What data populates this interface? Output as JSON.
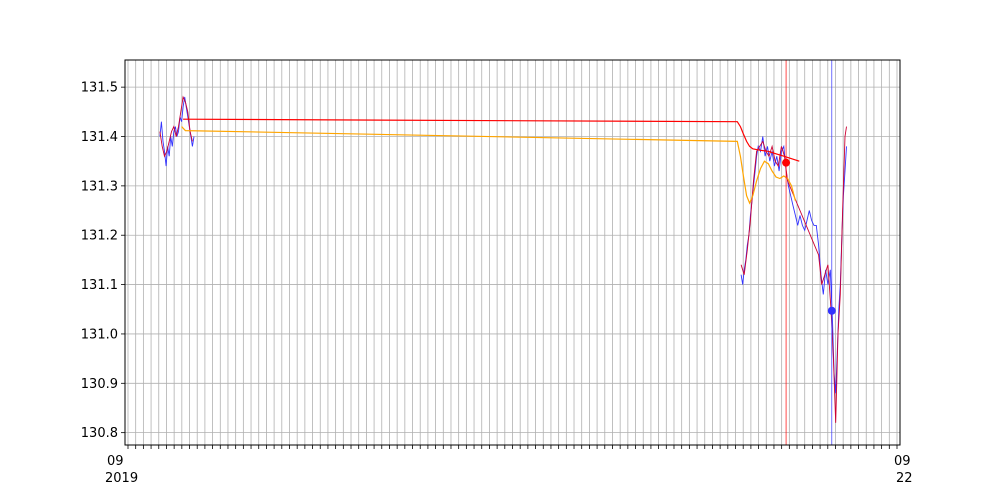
{
  "chart_data": {
    "type": "line",
    "title": "",
    "xlabel": "",
    "ylabel": "",
    "grid": true,
    "ylim": [
      130.775,
      131.555
    ],
    "yticks": [
      130.8,
      130.9,
      131.0,
      131.1,
      131.2,
      131.3,
      131.4,
      131.5
    ],
    "ytick_labels": [
      "130.8",
      "130.9",
      "131.0",
      "131.1",
      "131.2",
      "131.3",
      "131.4",
      "131.5"
    ],
    "xlim": [
      0,
      100
    ],
    "x_tick_count": 100,
    "x_tick_labels_edge": {
      "first_top": "09",
      "last_top": "09",
      "first_bottom": "2019",
      "last_bottom": "22"
    },
    "series": [
      {
        "role": "price",
        "color": "#3333ff",
        "points": [
          [
            4.5,
            131.4
          ],
          [
            4.7,
            131.43
          ],
          [
            4.9,
            131.39
          ],
          [
            5.1,
            131.37
          ],
          [
            5.3,
            131.34
          ],
          [
            5.5,
            131.38
          ],
          [
            5.7,
            131.36
          ],
          [
            5.9,
            131.4
          ],
          [
            6.1,
            131.38
          ],
          [
            6.3,
            131.41
          ],
          [
            6.5,
            131.42
          ],
          [
            6.7,
            131.4
          ],
          [
            6.9,
            131.41
          ],
          [
            7.1,
            131.44
          ],
          [
            7.3,
            131.43
          ],
          [
            7.5,
            131.46
          ],
          [
            7.7,
            131.48
          ],
          [
            7.9,
            131.46
          ],
          [
            8.1,
            131.44
          ],
          [
            8.3,
            131.42
          ],
          [
            8.5,
            131.4
          ],
          [
            8.7,
            131.38
          ],
          [
            8.9,
            131.4
          ],
          [
            79.5,
            131.12
          ],
          [
            79.7,
            131.1
          ],
          [
            79.9,
            131.13
          ],
          [
            80.1,
            131.15
          ],
          [
            80.3,
            131.18
          ],
          [
            80.5,
            131.2
          ],
          [
            80.7,
            131.24
          ],
          [
            80.9,
            131.27
          ],
          [
            81.1,
            131.3
          ],
          [
            81.3,
            131.33
          ],
          [
            81.5,
            131.36
          ],
          [
            81.7,
            131.38
          ],
          [
            82.0,
            131.37
          ],
          [
            82.3,
            131.4
          ],
          [
            82.6,
            131.36
          ],
          [
            82.9,
            131.38
          ],
          [
            83.2,
            131.35
          ],
          [
            83.5,
            131.37
          ],
          [
            83.8,
            131.34
          ],
          [
            84.1,
            131.36
          ],
          [
            84.4,
            131.33
          ],
          [
            84.7,
            131.37
          ],
          [
            85.0,
            131.38
          ],
          [
            85.3,
            131.33
          ],
          [
            85.6,
            131.3
          ],
          [
            85.9,
            131.28
          ],
          [
            86.2,
            131.26
          ],
          [
            86.5,
            131.24
          ],
          [
            86.8,
            131.22
          ],
          [
            87.1,
            131.24
          ],
          [
            87.4,
            131.22
          ],
          [
            87.7,
            131.21
          ],
          [
            88.0,
            131.23
          ],
          [
            88.3,
            131.25
          ],
          [
            88.6,
            131.23
          ],
          [
            88.9,
            131.22
          ],
          [
            89.2,
            131.22
          ],
          [
            89.5,
            131.18
          ],
          [
            89.8,
            131.12
          ],
          [
            90.1,
            131.08
          ],
          [
            90.4,
            131.13
          ],
          [
            90.7,
            131.1
          ],
          [
            91.0,
            131.13
          ],
          [
            91.3,
            131.02
          ],
          [
            91.5,
            130.92
          ],
          [
            91.7,
            130.88
          ],
          [
            91.9,
            130.96
          ],
          [
            92.1,
            131.05
          ],
          [
            92.3,
            131.1
          ],
          [
            92.5,
            131.2
          ],
          [
            92.7,
            131.28
          ],
          [
            92.9,
            131.33
          ],
          [
            93.1,
            131.38
          ]
        ]
      },
      {
        "role": "overlay",
        "color": "#cc0033",
        "points": [
          [
            4.5,
            131.41
          ],
          [
            4.8,
            131.38
          ],
          [
            5.1,
            131.36
          ],
          [
            5.4,
            131.37
          ],
          [
            5.7,
            131.39
          ],
          [
            6.0,
            131.41
          ],
          [
            6.3,
            131.42
          ],
          [
            6.6,
            131.4
          ],
          [
            6.9,
            131.42
          ],
          [
            7.2,
            131.45
          ],
          [
            7.5,
            131.48
          ],
          [
            7.8,
            131.47
          ],
          [
            8.1,
            131.45
          ],
          [
            8.4,
            131.41
          ],
          [
            8.7,
            131.39
          ],
          [
            79.5,
            131.14
          ],
          [
            79.9,
            131.12
          ],
          [
            80.3,
            131.17
          ],
          [
            80.7,
            131.23
          ],
          [
            81.1,
            131.31
          ],
          [
            81.5,
            131.37
          ],
          [
            81.9,
            131.38
          ],
          [
            82.3,
            131.39
          ],
          [
            82.7,
            131.37
          ],
          [
            83.1,
            131.36
          ],
          [
            83.5,
            131.38
          ],
          [
            83.9,
            131.35
          ],
          [
            84.3,
            131.34
          ],
          [
            84.7,
            131.38
          ],
          [
            85.1,
            131.36
          ],
          [
            85.5,
            131.31
          ],
          [
            89.5,
            131.16
          ],
          [
            89.9,
            131.1
          ],
          [
            90.3,
            131.12
          ],
          [
            90.7,
            131.14
          ],
          [
            91.1,
            131.05
          ],
          [
            91.4,
            130.95
          ],
          [
            91.7,
            130.82
          ],
          [
            92.0,
            131.0
          ],
          [
            92.3,
            131.08
          ],
          [
            92.6,
            131.25
          ],
          [
            92.9,
            131.4
          ],
          [
            93.1,
            131.42
          ]
        ]
      },
      {
        "role": "red-line",
        "color": "#ff0000",
        "points": [
          [
            7.5,
            131.435
          ],
          [
            79.0,
            131.43
          ],
          [
            79.4,
            131.42
          ],
          [
            79.8,
            131.405
          ],
          [
            80.2,
            131.39
          ],
          [
            80.6,
            131.38
          ],
          [
            81.0,
            131.375
          ],
          [
            82.0,
            131.372
          ],
          [
            83.0,
            131.37
          ],
          [
            84.0,
            131.365
          ],
          [
            85.0,
            131.36
          ],
          [
            86.0,
            131.355
          ],
          [
            87.0,
            131.35
          ]
        ]
      },
      {
        "role": "orange-line",
        "color": "#ffa500",
        "points": [
          [
            7.3,
            131.42
          ],
          [
            7.8,
            131.412
          ],
          [
            79.0,
            131.39
          ],
          [
            79.4,
            131.36
          ],
          [
            79.8,
            131.32
          ],
          [
            80.2,
            131.28
          ],
          [
            80.6,
            131.265
          ],
          [
            81.0,
            131.28
          ],
          [
            81.5,
            131.31
          ],
          [
            82.0,
            131.335
          ],
          [
            82.5,
            131.35
          ],
          [
            83.0,
            131.345
          ],
          [
            83.5,
            131.33
          ],
          [
            84.0,
            131.318
          ],
          [
            84.5,
            131.315
          ],
          [
            85.0,
            131.32
          ],
          [
            85.5,
            131.315
          ],
          [
            86.0,
            131.3
          ],
          [
            86.5,
            131.27
          ]
        ]
      }
    ],
    "vlines": [
      {
        "x": 85.3,
        "color": "#ff0000"
      },
      {
        "x": 91.2,
        "color": "#3333ff"
      }
    ],
    "markers": [
      {
        "x": 85.3,
        "y": 131.347,
        "color": "#ff0000"
      },
      {
        "x": 91.2,
        "y": 131.047,
        "color": "#3333ff"
      }
    ]
  }
}
